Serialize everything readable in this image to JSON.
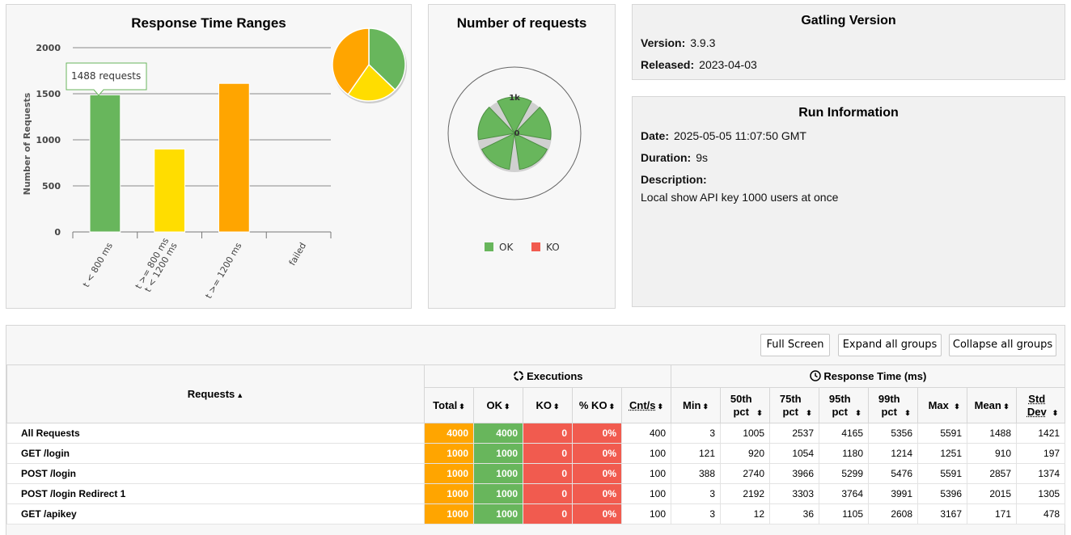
{
  "response_time_ranges": {
    "title": "Response Time Ranges",
    "chart_data": {
      "type": "bar",
      "categories": [
        "t < 800 ms",
        "t >= 800 ms t < 1200 ms",
        "t >= 1200 ms",
        "failed"
      ],
      "category_lines": [
        [
          "t < 800 ms"
        ],
        [
          "t >= 800 ms",
          "t < 1200 ms"
        ],
        [
          "t >= 1200 ms"
        ],
        [
          "failed"
        ]
      ],
      "values": [
        1488,
        900,
        1612,
        0
      ],
      "colors": [
        "#68b65c",
        "#ffdd00",
        "#ffa500",
        "#f15b4f"
      ],
      "ylabel": "Number of Requests",
      "ylim": [
        0,
        2000
      ],
      "yticks": [
        0,
        500,
        1000,
        1500,
        2000
      ],
      "tooltip": "1488 requests"
    },
    "pie": {
      "type": "pie",
      "values": [
        1488,
        900,
        1612
      ],
      "colors": [
        "#68b65c",
        "#ffdd00",
        "#ffa500"
      ]
    }
  },
  "number_of_requests": {
    "title": "Number of requests",
    "chart_data": {
      "type": "pie",
      "axis_labels": [
        "1k",
        "0"
      ],
      "legend": [
        {
          "name": "OK",
          "color": "#68b65c"
        },
        {
          "name": "KO",
          "color": "#f15b4f"
        }
      ]
    }
  },
  "gatling_version": {
    "title": "Gatling Version",
    "version_label": "Version:",
    "version": "3.9.3",
    "released_label": "Released:",
    "released": "2023-04-03"
  },
  "run_information": {
    "title": "Run Information",
    "date_label": "Date:",
    "date": "2025-05-05 11:07:50 GMT",
    "duration_label": "Duration:",
    "duration": "9s",
    "description_label": "Description:",
    "description": "Local show API key 1000 users at once"
  },
  "table": {
    "buttons": {
      "full_screen": "Full Screen",
      "expand": "Expand all groups",
      "collapse": "Collapse all groups"
    },
    "group_headers": {
      "requests": "Requests",
      "executions": "Executions",
      "response_time": "Response Time (ms)"
    },
    "columns": [
      "Total",
      "OK",
      "KO",
      "% KO",
      "Cnt/s",
      "Min",
      "50th pct",
      "75th pct",
      "95th pct",
      "99th pct",
      "Max",
      "Mean",
      "Std Dev"
    ],
    "rows": [
      {
        "name": "All Requests",
        "cells": [
          "4000",
          "4000",
          "0",
          "0%",
          "400",
          "3",
          "1005",
          "2537",
          "4165",
          "5356",
          "5591",
          "1488",
          "1421"
        ]
      },
      {
        "name": "GET /login",
        "cells": [
          "1000",
          "1000",
          "0",
          "0%",
          "100",
          "121",
          "920",
          "1054",
          "1180",
          "1214",
          "1251",
          "910",
          "197"
        ]
      },
      {
        "name": "POST /login",
        "cells": [
          "1000",
          "1000",
          "0",
          "0%",
          "100",
          "388",
          "2740",
          "3966",
          "5299",
          "5476",
          "5591",
          "2857",
          "1374"
        ]
      },
      {
        "name": "POST /login Redirect 1",
        "cells": [
          "1000",
          "1000",
          "0",
          "0%",
          "100",
          "3",
          "2192",
          "3303",
          "3764",
          "3991",
          "5396",
          "2015",
          "1305"
        ]
      },
      {
        "name": "GET /apikey",
        "cells": [
          "1000",
          "1000",
          "0",
          "0%",
          "100",
          "3",
          "12",
          "36",
          "1105",
          "2608",
          "3167",
          "171",
          "478"
        ]
      }
    ]
  }
}
